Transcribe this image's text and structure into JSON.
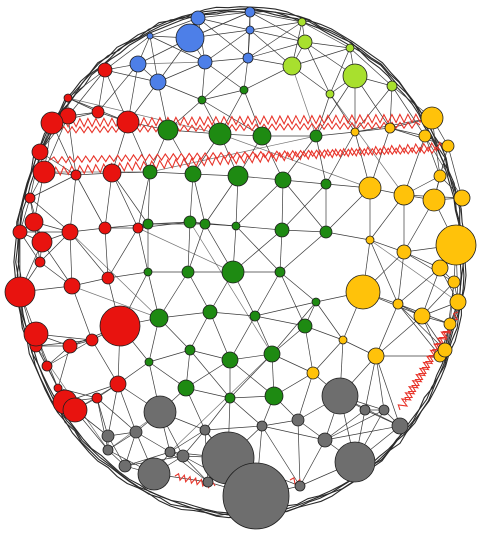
{
  "diagram": {
    "type": "network-graph",
    "labels": [],
    "groups": [
      {
        "name": "red",
        "color": "#e8130f"
      },
      {
        "name": "green",
        "color": "#1e8a12"
      },
      {
        "name": "blue",
        "color": "#4d7fe8"
      },
      {
        "name": "yellow-green",
        "color": "#a8e02e"
      },
      {
        "name": "yellow",
        "color": "#ffc20a"
      },
      {
        "name": "gray",
        "color": "#6e6e6e"
      }
    ],
    "spring_color": "#e8352b",
    "edge_color": "#3a3a3a"
  }
}
